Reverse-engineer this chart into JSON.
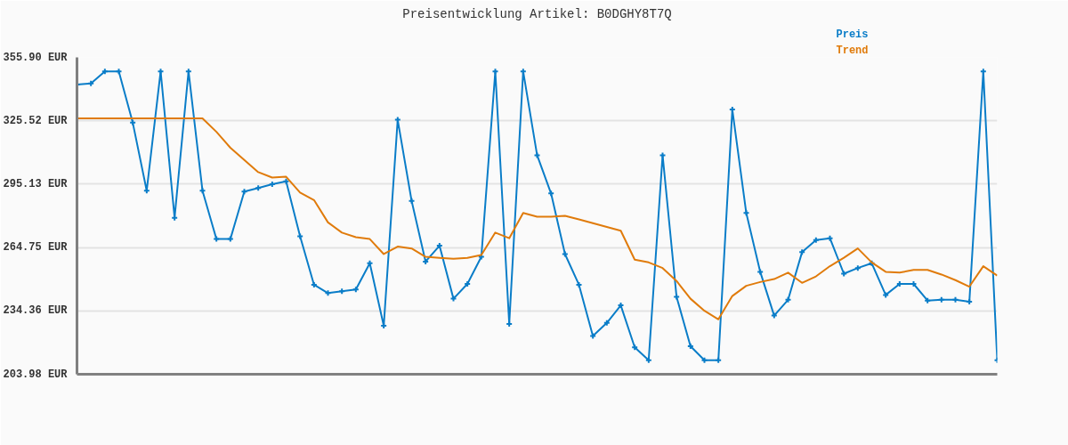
{
  "chart_data": {
    "type": "line",
    "title": "Preisentwicklung Artikel: B0DGHY8T7Q",
    "categories": [
      null,
      null,
      null,
      null,
      null,
      null,
      null,
      null,
      null,
      null,
      null,
      null,
      null,
      null,
      null,
      null,
      null,
      null,
      null,
      null,
      null,
      null,
      null,
      null,
      null,
      null,
      null,
      null,
      null,
      null,
      null,
      null,
      null,
      null,
      null,
      null,
      null,
      null,
      null,
      null,
      null,
      null,
      null,
      null,
      null,
      null,
      null,
      null,
      null,
      null,
      null,
      null,
      null,
      null,
      null,
      null,
      null,
      null,
      null,
      null,
      null,
      null,
      null,
      null,
      null,
      null,
      null
    ],
    "series": [
      {
        "name": "Preis",
        "color": "#0a7dc8",
        "marker": "cross",
        "values": [
          342.9,
          343.4,
          349.2,
          349.2,
          324.6,
          292.0,
          349.2,
          279.0,
          349.2,
          292.0,
          268.8,
          268.8,
          291.6,
          293.3,
          295.1,
          296.5,
          270.1,
          246.9,
          242.9,
          243.8,
          244.6,
          257.2,
          227.2,
          326.0,
          287.1,
          258.0,
          265.6,
          240.2,
          247.3,
          260.3,
          349.2,
          228.1,
          349.2,
          309.0,
          290.7,
          261.6,
          246.9,
          222.3,
          228.6,
          237.0,
          216.9,
          210.7,
          309.0,
          241.1,
          217.4,
          210.7,
          210.7,
          330.9,
          281.3,
          253.1,
          232.1,
          239.7,
          262.5,
          268.3,
          269.2,
          252.2,
          254.9,
          257.2,
          242.0,
          247.3,
          247.3,
          239.3,
          239.7,
          239.7,
          238.8,
          349.2,
          210.7
        ]
      },
      {
        "name": "Trend",
        "color": "#e07b0b",
        "marker": "none",
        "values": [
          326.7,
          326.7,
          326.7,
          326.7,
          326.7,
          326.7,
          326.7,
          326.7,
          326.7,
          326.7,
          320.2,
          312.6,
          306.7,
          300.9,
          298.3,
          298.7,
          291.1,
          287.5,
          276.8,
          271.9,
          269.7,
          268.8,
          261.6,
          265.2,
          264.3,
          260.3,
          259.8,
          259.4,
          259.8,
          261.2,
          271.9,
          269.2,
          281.3,
          279.5,
          279.5,
          279.9,
          278.2,
          276.4,
          274.6,
          272.8,
          258.9,
          257.6,
          254.9,
          248.7,
          240.2,
          234.4,
          230.3,
          241.5,
          246.4,
          248.2,
          249.6,
          252.7,
          247.8,
          250.9,
          255.8,
          259.8,
          264.3,
          257.6,
          253.1,
          252.7,
          254.0,
          254.0,
          251.8,
          249.1,
          246.0,
          255.8,
          251.3
        ]
      }
    ],
    "ylim": [
      203.98,
      355.9
    ],
    "yticks": [
      {
        "value": 203.98,
        "label": "203.98 EUR"
      },
      {
        "value": 234.36,
        "label": "234.36 EUR"
      },
      {
        "value": 264.75,
        "label": "264.75 EUR"
      },
      {
        "value": 295.13,
        "label": "295.13 EUR"
      },
      {
        "value": 325.52,
        "label": "325.52 EUR"
      },
      {
        "value": 355.9,
        "label": "355.90 EUR"
      }
    ],
    "grid": "y",
    "line_style": "solid",
    "tick_labels": "y"
  }
}
